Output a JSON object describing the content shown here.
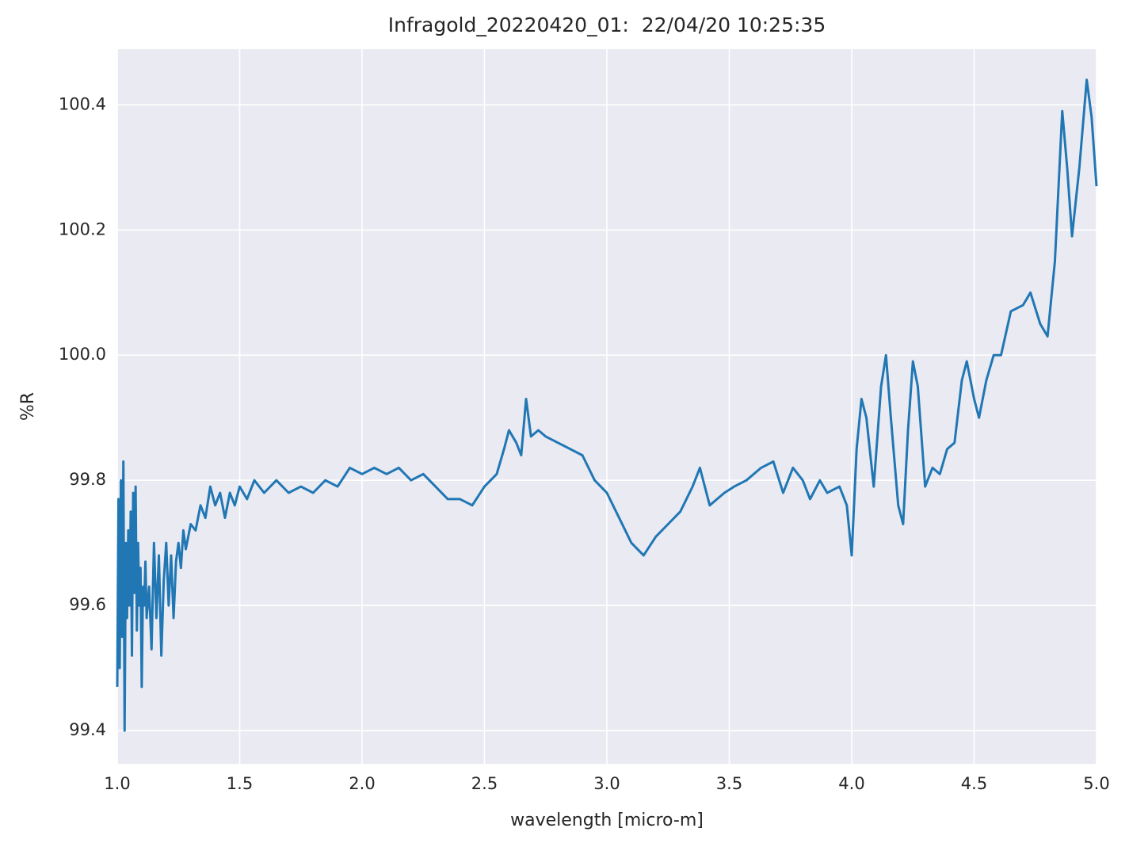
{
  "chart_data": {
    "type": "line",
    "title": "Infragold_20220420_01:  22/04/20 10:25:35",
    "xlabel": "wavelength [micro-m]",
    "ylabel": "%R",
    "color": "#2077b4",
    "grid": true,
    "xlim": [
      1,
      5
    ],
    "ylim": [
      99.347,
      100.489
    ],
    "xticks": [
      {
        "value": 1,
        "label": "1.0"
      },
      1.5,
      {
        "value": 2,
        "label": "2.0"
      },
      2.5,
      {
        "value": 3,
        "label": "3.0"
      },
      3.5,
      {
        "value": 4,
        "label": "4.0"
      },
      4.5,
      {
        "value": 5,
        "label": "5.0"
      }
    ],
    "yticks": [
      99.4,
      99.6,
      99.8,
      {
        "value": 100,
        "label": "100.0"
      },
      100.2,
      100.4
    ],
    "x": [
      1.0,
      1.005,
      1.01,
      1.015,
      1.02,
      1.025,
      1.03,
      1.035,
      1.04,
      1.045,
      1.05,
      1.055,
      1.06,
      1.065,
      1.07,
      1.075,
      1.08,
      1.085,
      1.09,
      1.095,
      1.1,
      1.105,
      1.11,
      1.115,
      1.12,
      1.13,
      1.14,
      1.15,
      1.16,
      1.17,
      1.18,
      1.19,
      1.2,
      1.21,
      1.22,
      1.23,
      1.24,
      1.25,
      1.26,
      1.27,
      1.28,
      1.3,
      1.32,
      1.34,
      1.36,
      1.38,
      1.4,
      1.42,
      1.44,
      1.46,
      1.48,
      1.5,
      1.53,
      1.56,
      1.6,
      1.65,
      1.7,
      1.75,
      1.8,
      1.85,
      1.9,
      1.95,
      2.0,
      2.05,
      2.1,
      2.15,
      2.2,
      2.25,
      2.3,
      2.35,
      2.4,
      2.45,
      2.5,
      2.55,
      2.58,
      2.6,
      2.63,
      2.65,
      2.67,
      2.69,
      2.72,
      2.75,
      2.8,
      2.85,
      2.9,
      2.95,
      3.0,
      3.05,
      3.1,
      3.15,
      3.2,
      3.25,
      3.3,
      3.35,
      3.38,
      3.42,
      3.48,
      3.52,
      3.57,
      3.63,
      3.68,
      3.72,
      3.76,
      3.8,
      3.83,
      3.87,
      3.9,
      3.95,
      3.98,
      4.0,
      4.02,
      4.04,
      4.06,
      4.09,
      4.12,
      4.14,
      4.16,
      4.19,
      4.21,
      4.23,
      4.25,
      4.27,
      4.3,
      4.33,
      4.36,
      4.39,
      4.42,
      4.45,
      4.47,
      4.5,
      4.52,
      4.55,
      4.58,
      4.61,
      4.65,
      4.7,
      4.73,
      4.77,
      4.8,
      4.83,
      4.86,
      4.88,
      4.9,
      4.93,
      4.96,
      4.98,
      5.0
    ],
    "values": [
      99.47,
      99.77,
      99.5,
      99.8,
      99.55,
      99.83,
      99.4,
      99.7,
      99.58,
      99.72,
      99.6,
      99.75,
      99.52,
      99.78,
      99.62,
      99.79,
      99.56,
      99.7,
      99.6,
      99.66,
      99.47,
      99.63,
      99.6,
      99.67,
      99.58,
      99.63,
      99.53,
      99.7,
      99.58,
      99.68,
      99.52,
      99.64,
      99.7,
      99.6,
      99.68,
      99.58,
      99.67,
      99.7,
      99.66,
      99.72,
      99.69,
      99.73,
      99.72,
      99.76,
      99.74,
      99.79,
      99.76,
      99.78,
      99.74,
      99.78,
      99.76,
      99.79,
      99.77,
      99.8,
      99.78,
      99.8,
      99.78,
      99.79,
      99.78,
      99.8,
      99.79,
      99.82,
      99.81,
      99.82,
      99.81,
      99.82,
      99.8,
      99.81,
      99.79,
      99.77,
      99.77,
      99.76,
      99.79,
      99.81,
      99.85,
      99.88,
      99.86,
      99.84,
      99.93,
      99.87,
      99.88,
      99.87,
      99.86,
      99.85,
      99.84,
      99.8,
      99.78,
      99.74,
      99.7,
      99.68,
      99.71,
      99.73,
      99.75,
      99.79,
      99.82,
      99.76,
      99.78,
      99.79,
      99.8,
      99.82,
      99.83,
      99.78,
      99.82,
      99.8,
      99.77,
      99.8,
      99.78,
      99.79,
      99.76,
      99.68,
      99.85,
      99.93,
      99.9,
      99.79,
      99.95,
      100.0,
      99.9,
      99.76,
      99.73,
      99.88,
      99.99,
      99.95,
      99.79,
      99.82,
      99.81,
      99.85,
      99.86,
      99.96,
      99.99,
      99.93,
      99.9,
      99.96,
      100.0,
      100.0,
      100.07,
      100.08,
      100.1,
      100.05,
      100.03,
      100.15,
      100.39,
      100.3,
      100.19,
      100.3,
      100.44,
      100.38,
      100.27
    ]
  }
}
